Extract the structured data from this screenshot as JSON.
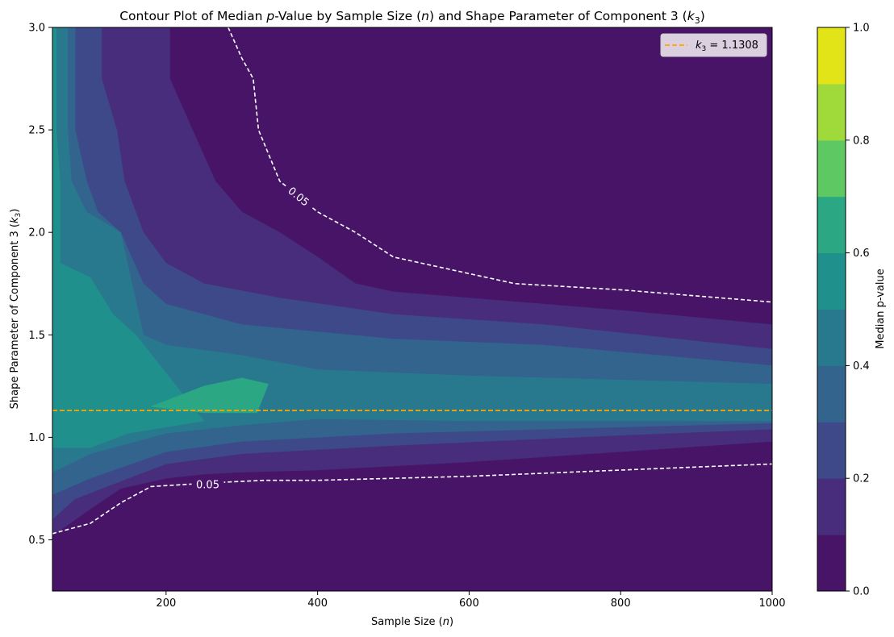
{
  "chart_data": {
    "type": "contour",
    "title": "Contour Plot of Median p-Value by Sample Size (n) and Shape Parameter of Component 3 (k3)",
    "title_parts": {
      "pre": "Contour Plot of Median ",
      "p": "p",
      "mid": "-Value by Sample Size (",
      "n": "n",
      "mid2": ") and Shape Parameter of Component 3 (",
      "k": "k",
      "sub": "3",
      "end": ")"
    },
    "xlabel": "Sample Size (n)",
    "xlabel_parts": {
      "pre": "Sample Size (",
      "n": "n",
      "end": ")"
    },
    "ylabel": "Shape Parameter of Component 3 (k3)",
    "ylabel_parts": {
      "pre": "Shape Parameter of Component 3 (",
      "k": "k",
      "sub": "3",
      "end": ")"
    },
    "xlim": [
      50,
      1000
    ],
    "ylim": [
      0.25,
      3.0
    ],
    "xticks": [
      200,
      400,
      600,
      800,
      1000
    ],
    "yticks": [
      0.5,
      1.0,
      1.5,
      2.0,
      2.5,
      3.0
    ],
    "ytick_labels": [
      "0.5",
      "1.0",
      "1.5",
      "2.0",
      "2.5",
      "3.0"
    ],
    "colormap": "viridis",
    "levels": [
      0.0,
      0.1,
      0.2,
      0.3,
      0.4,
      0.5,
      0.6,
      0.7,
      0.8,
      0.9,
      1.0
    ],
    "level_colors": [
      "#481467",
      "#472d7b",
      "#3e4989",
      "#32648e",
      "#29798e",
      "#20908d",
      "#2ba783",
      "#5ec962",
      "#9fda3a",
      "#e2e418"
    ],
    "colorbar": {
      "label": "Median p-value",
      "ticks": [
        0.0,
        0.2,
        0.4,
        0.6,
        0.8,
        1.0
      ],
      "tick_labels": [
        "0.0",
        "0.2",
        "0.4",
        "0.6",
        "0.8",
        "1.0"
      ]
    },
    "level_boundaries": [
      {
        "level": 0.1,
        "upper": [
          [
            205,
            3.0
          ],
          [
            205,
            2.75
          ],
          [
            235,
            2.5
          ],
          [
            265,
            2.25
          ],
          [
            300,
            2.1
          ],
          [
            350,
            2.0
          ],
          [
            400,
            1.88
          ],
          [
            450,
            1.75
          ],
          [
            500,
            1.71
          ],
          [
            600,
            1.68
          ],
          [
            800,
            1.62
          ],
          [
            1000,
            1.55
          ]
        ],
        "lower": [
          [
            50,
            0.52
          ],
          [
            100,
            0.65
          ],
          [
            140,
            0.75
          ],
          [
            200,
            0.8
          ],
          [
            250,
            0.82
          ],
          [
            300,
            0.83
          ],
          [
            400,
            0.84
          ],
          [
            600,
            0.88
          ],
          [
            800,
            0.93
          ],
          [
            1000,
            0.98
          ]
        ]
      },
      {
        "level": 0.2,
        "upper": [
          [
            115,
            3.0
          ],
          [
            115,
            2.75
          ],
          [
            135,
            2.5
          ],
          [
            145,
            2.25
          ],
          [
            170,
            2.0
          ],
          [
            200,
            1.85
          ],
          [
            250,
            1.75
          ],
          [
            350,
            1.68
          ],
          [
            500,
            1.6
          ],
          [
            700,
            1.55
          ],
          [
            1000,
            1.43
          ]
        ],
        "lower": [
          [
            50,
            0.6
          ],
          [
            80,
            0.7
          ],
          [
            150,
            0.8
          ],
          [
            200,
            0.87
          ],
          [
            300,
            0.92
          ],
          [
            500,
            0.96
          ],
          [
            800,
            1.01
          ],
          [
            1000,
            1.04
          ]
        ]
      },
      {
        "level": 0.3,
        "upper": [
          [
            80,
            3.0
          ],
          [
            80,
            2.5
          ],
          [
            95,
            2.25
          ],
          [
            110,
            2.1
          ],
          [
            140,
            2.0
          ],
          [
            170,
            1.75
          ],
          [
            200,
            1.65
          ],
          [
            300,
            1.55
          ],
          [
            500,
            1.48
          ],
          [
            700,
            1.45
          ],
          [
            1000,
            1.35
          ]
        ],
        "lower": [
          [
            50,
            0.72
          ],
          [
            100,
            0.8
          ],
          [
            200,
            0.93
          ],
          [
            300,
            0.98
          ],
          [
            500,
            1.02
          ],
          [
            800,
            1.05
          ],
          [
            1000,
            1.07
          ]
        ]
      },
      {
        "level": 0.4,
        "upper": [
          [
            70,
            3.0
          ],
          [
            70,
            2.5
          ],
          [
            75,
            2.25
          ],
          [
            95,
            2.1
          ],
          [
            140,
            2.0
          ],
          [
            170,
            1.5
          ],
          [
            200,
            1.45
          ],
          [
            300,
            1.4
          ],
          [
            400,
            1.33
          ],
          [
            600,
            1.3
          ],
          [
            1000,
            1.26
          ]
        ],
        "lower": [
          [
            50,
            0.83
          ],
          [
            100,
            0.92
          ],
          [
            200,
            1.02
          ],
          [
            300,
            1.06
          ],
          [
            400,
            1.09
          ],
          [
            600,
            1.08
          ],
          [
            1000,
            1.08
          ]
        ]
      },
      {
        "level": 0.5,
        "upper": [
          [
            55,
            3.0
          ],
          [
            55,
            2.5
          ],
          [
            60,
            2.25
          ],
          [
            60,
            2.0
          ],
          [
            60,
            1.85
          ],
          [
            100,
            1.78
          ],
          [
            130,
            1.6
          ],
          [
            160,
            1.5
          ]
        ],
        "lower": [
          [
            50,
            0.95
          ],
          [
            100,
            0.95
          ],
          [
            150,
            1.02
          ],
          [
            200,
            1.05
          ],
          [
            250,
            1.08
          ]
        ]
      },
      {
        "level": 0.6,
        "polygon": [
          [
            180,
            1.15
          ],
          [
            250,
            1.25
          ],
          [
            300,
            1.29
          ],
          [
            335,
            1.26
          ],
          [
            320,
            1.12
          ],
          [
            250,
            1.12
          ]
        ]
      }
    ],
    "contour_line": {
      "level": 0.05,
      "label": "0.05",
      "upper": [
        [
          282,
          3.0
        ],
        [
          300,
          2.85
        ],
        [
          315,
          2.75
        ],
        [
          322,
          2.5
        ],
        [
          350,
          2.25
        ],
        [
          400,
          2.1
        ],
        [
          450,
          2.0
        ],
        [
          500,
          1.88
        ],
        [
          660,
          1.75
        ],
        [
          800,
          1.72
        ],
        [
          1000,
          1.66
        ]
      ],
      "lower": [
        [
          50,
          0.53
        ],
        [
          100,
          0.58
        ],
        [
          140,
          0.68
        ],
        [
          180,
          0.76
        ],
        [
          270,
          0.78
        ],
        [
          330,
          0.79
        ],
        [
          400,
          0.79
        ],
        [
          600,
          0.81
        ],
        [
          800,
          0.84
        ],
        [
          1000,
          0.87
        ]
      ]
    },
    "reference_line": {
      "y": 1.1308,
      "color": "#ffa500",
      "label": "k3 = 1.1308",
      "label_parts": {
        "k": "k",
        "sub": "3",
        "rest": " = 1.1308"
      }
    },
    "legend_placement": "top-right",
    "grid": false
  }
}
